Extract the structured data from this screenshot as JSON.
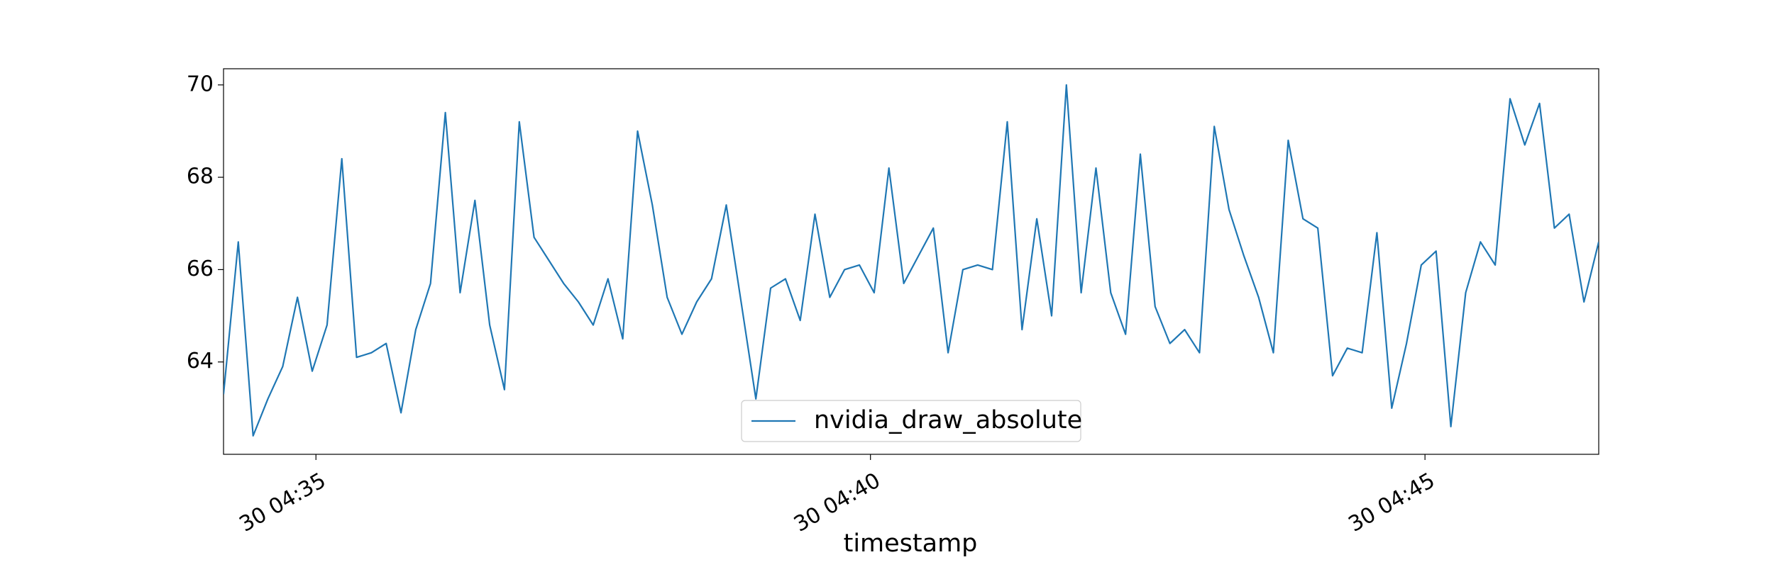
{
  "chart_data": {
    "type": "line",
    "xlabel": "timestamp",
    "ylabel": "",
    "x_ticks": [
      "30 04:35",
      "30 04:40",
      "30 04:45"
    ],
    "y_ticks": [
      "64",
      "66",
      "68",
      "70"
    ],
    "ylim": [
      62.0,
      70.35
    ],
    "grid": false,
    "legend": {
      "location": "lower center",
      "entries": [
        "nvidia_draw_absolute"
      ]
    },
    "colors": {
      "series": "#1f77b4",
      "axes": "#000000",
      "background": "#ffffff"
    },
    "x_start": "04:34:10",
    "x_step_seconds": 8,
    "series": [
      {
        "name": "nvidia_draw_absolute",
        "values": [
          63.3,
          66.6,
          62.4,
          63.2,
          63.9,
          65.4,
          63.8,
          64.8,
          68.4,
          64.1,
          64.2,
          64.4,
          62.9,
          64.7,
          65.7,
          69.4,
          65.5,
          67.5,
          64.8,
          63.4,
          69.2,
          66.7,
          66.2,
          65.7,
          65.3,
          64.8,
          65.8,
          64.5,
          69.0,
          67.4,
          65.4,
          64.6,
          65.3,
          65.8,
          67.4,
          65.3,
          63.2,
          65.6,
          65.8,
          64.9,
          67.2,
          65.4,
          66.0,
          66.1,
          65.5,
          68.2,
          65.7,
          66.3,
          66.9,
          64.2,
          66.0,
          66.1,
          66.0,
          69.2,
          64.7,
          67.1,
          65.0,
          70.0,
          65.5,
          68.2,
          65.5,
          64.6,
          68.5,
          65.2,
          64.4,
          64.7,
          64.2,
          69.1,
          67.3,
          66.3,
          65.4,
          64.2,
          68.8,
          67.1,
          66.9,
          63.7,
          64.3,
          64.2,
          66.8,
          63.0,
          64.4,
          66.1,
          66.4,
          62.6,
          65.5,
          66.6,
          66.1,
          69.7,
          68.7,
          69.6,
          66.9,
          67.2,
          65.3,
          66.6
        ]
      }
    ]
  }
}
